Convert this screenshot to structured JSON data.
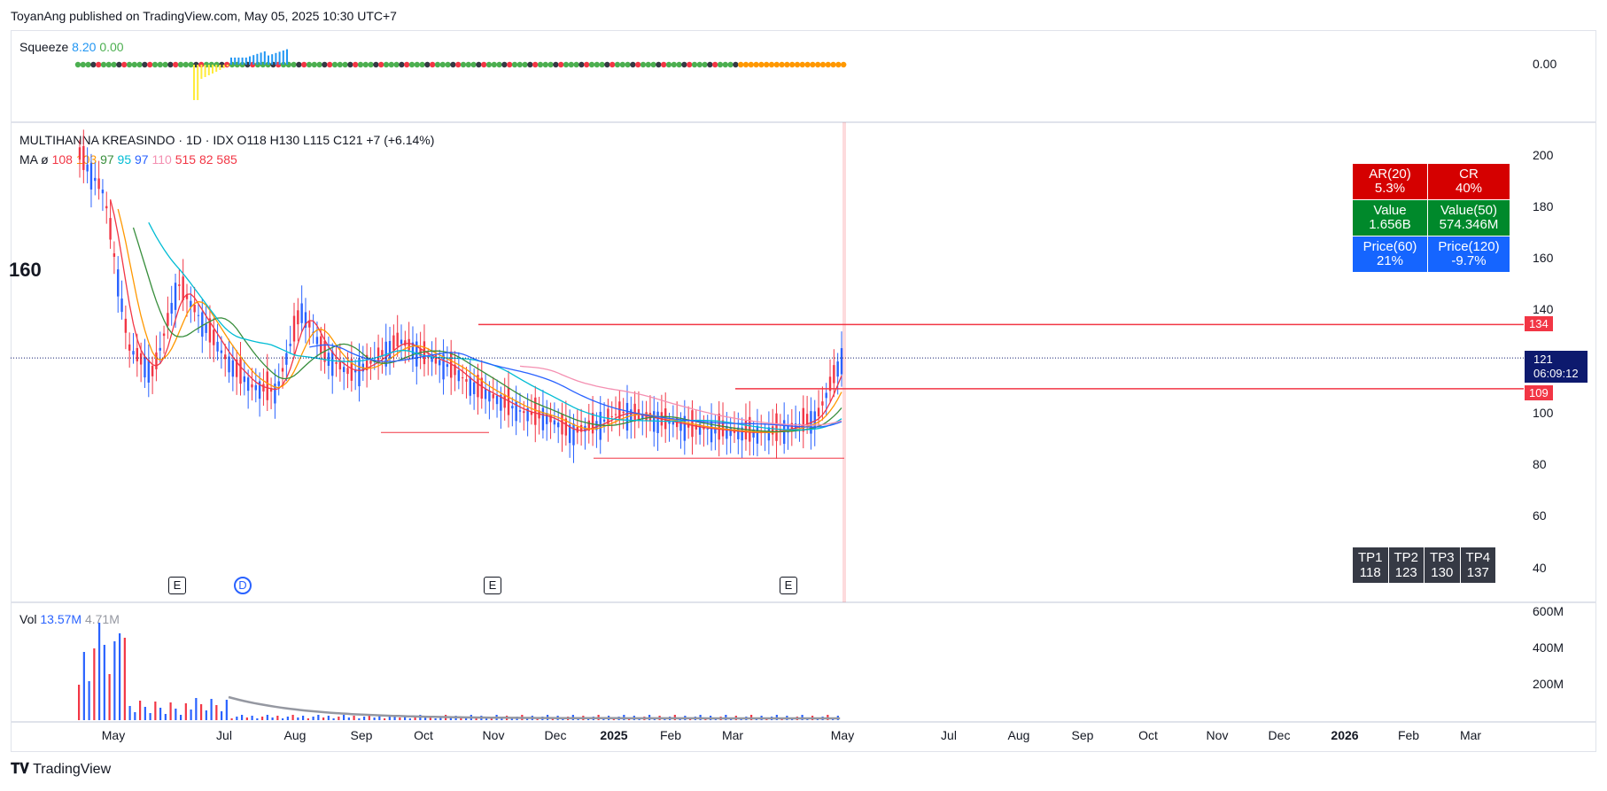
{
  "header": {
    "published": "ToyanAng published on TradingView.com, May 05, 2025 10:30 UTC+7"
  },
  "colors": {
    "up": "#2962ff",
    "down": "#f23645",
    "ma_red": "#f23645",
    "ma_orange": "#ff9800",
    "ma_green": "#388e3c",
    "ma_teal": "#00bcd4",
    "ma_blue": "#2962ff",
    "ma_pink": "#f48fb1"
  },
  "squeeze": {
    "label": "Squeeze",
    "v1": "8.20",
    "v2": "0.00",
    "axis": "0.00"
  },
  "symbol": {
    "legend": "MULTIHANNA KREASINDO · 1D · IDX  O118  H130  L115  C121  +7 (+6.14%)"
  },
  "ma": {
    "label": "MA  ø",
    "values": [
      "108",
      "103",
      "97",
      "95",
      "97",
      "110",
      "515",
      "82",
      "585"
    ]
  },
  "left_value": "160",
  "price_axis": [
    "200",
    "180",
    "160",
    "140",
    "100",
    "80",
    "60",
    "40"
  ],
  "price_tags": {
    "level_high": "134",
    "last": "121",
    "countdown": "06:09:12",
    "level_low": "109"
  },
  "stats": [
    [
      {
        "title": "AR(20)",
        "value": "5.3%",
        "color": "#d50000"
      },
      {
        "title": "CR",
        "value": "40%",
        "color": "#d50000"
      }
    ],
    [
      {
        "title": "Value",
        "value": "1.656B",
        "color": "#00892b"
      },
      {
        "title": "Value(50)",
        "value": "574.346M",
        "color": "#00892b"
      }
    ],
    [
      {
        "title": "Price(60)",
        "value": "21%",
        "color": "#1565ff"
      },
      {
        "title": "Price(120)",
        "value": "-9.7%",
        "color": "#1565ff"
      }
    ]
  ],
  "targets": [
    {
      "title": "TP1",
      "value": "118"
    },
    {
      "title": "TP2",
      "value": "123"
    },
    {
      "title": "TP3",
      "value": "130"
    },
    {
      "title": "TP4",
      "value": "137"
    }
  ],
  "events": [
    "E",
    "D",
    "E",
    "E"
  ],
  "volume": {
    "label": "Vol",
    "v1": "13.57M",
    "v2": "4.71M",
    "axis": [
      "600M",
      "400M",
      "200M"
    ]
  },
  "time_axis": [
    "May",
    "Jul",
    "Aug",
    "Sep",
    "Oct",
    "Nov",
    "Dec",
    "2025",
    "Feb",
    "Mar",
    "May",
    "Jul",
    "Aug",
    "Sep",
    "Oct",
    "Nov",
    "Dec",
    "2026",
    "Feb",
    "Mar"
  ],
  "footer": {
    "brand": "TradingView"
  },
  "chart_data": {
    "type": "line",
    "x_axis_labels": [
      "May",
      "Jul",
      "Aug",
      "Sep",
      "Oct",
      "Nov",
      "Dec",
      "2025",
      "Feb",
      "Mar",
      "May"
    ],
    "y_axis_ticks": [
      40,
      60,
      80,
      100,
      140,
      160,
      180,
      200
    ],
    "ylim": [
      30,
      210
    ],
    "close_series": {
      "values": [
        200,
        185,
        125,
        115,
        150,
        135,
        120,
        110,
        108,
        140,
        122,
        115,
        120,
        128,
        122,
        118,
        110,
        105,
        100,
        98,
        92,
        95,
        100,
        98,
        96,
        94,
        93,
        92,
        92,
        94,
        98,
        121
      ]
    },
    "levels": [
      134,
      109,
      92,
      82
    ],
    "last_price": 121
  }
}
